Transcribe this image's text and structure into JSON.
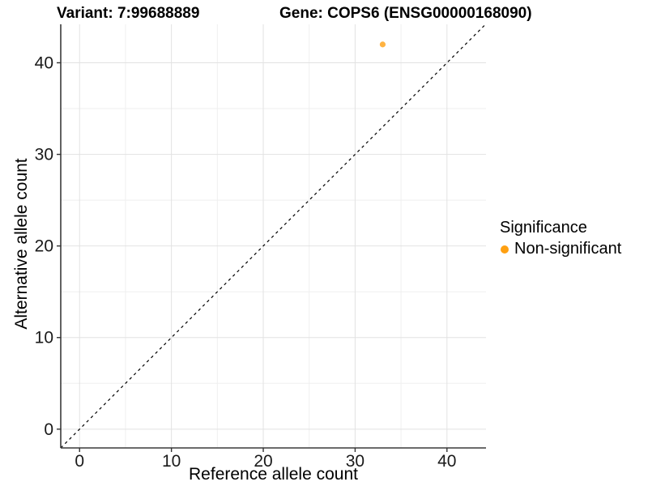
{
  "chart_data": {
    "type": "scatter",
    "title_left": "Variant: 7:99688889",
    "title_right": "Gene: COPS6 (ENSG00000168090)",
    "xlabel": "Reference allele count",
    "ylabel": "Alternative allele count",
    "xlim": [
      -2.05,
      44.25
    ],
    "ylim": [
      -2.05,
      44.2
    ],
    "x_ticks": [
      0,
      10,
      20,
      30,
      40
    ],
    "y_ticks": [
      0,
      10,
      20,
      30,
      40
    ],
    "x_minor": [
      5,
      15,
      25,
      35
    ],
    "y_minor": [
      5,
      15,
      25,
      35
    ],
    "grid": true,
    "identity_line": {
      "slope": 1,
      "intercept": 0,
      "style": "dashed",
      "color": "#000000"
    },
    "points": [
      {
        "x": 33,
        "y": 42,
        "series": "Non-significant"
      }
    ],
    "legend": {
      "title": "Significance",
      "position": "right",
      "items": [
        {
          "label": "Non-significant",
          "color": "#FFA011"
        }
      ]
    },
    "colors": {
      "point": "#FFA011",
      "axis_line": "#3a3a3a",
      "tick_mark": "#333333",
      "tick_label": "#1a1a1a",
      "grid_major": "#e2e2e2",
      "grid_minor": "#efefef"
    }
  }
}
